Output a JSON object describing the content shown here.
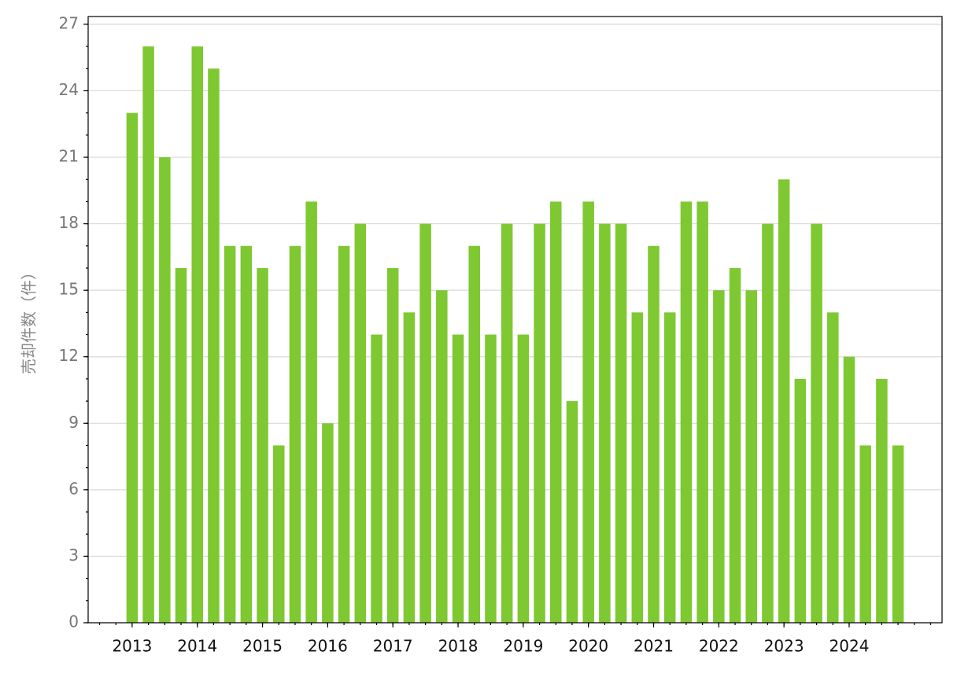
{
  "chart_data": {
    "type": "bar",
    "y_label": "売却件数（件）",
    "categories": [
      "2013",
      null,
      null,
      null,
      "2014",
      null,
      null,
      null,
      "2015",
      null,
      null,
      null,
      "2016",
      null,
      null,
      null,
      "2017",
      null,
      null,
      null,
      "2018",
      null,
      null,
      null,
      "2019",
      null,
      null,
      null,
      "2020",
      null,
      null,
      null,
      "2021",
      null,
      null,
      null,
      "2022",
      null,
      null,
      null,
      "2023",
      null,
      null,
      null,
      "2024",
      null,
      null,
      null
    ],
    "values": [
      23,
      26,
      21,
      16,
      26,
      25,
      17,
      17,
      16,
      8,
      17,
      19,
      9,
      17,
      18,
      13,
      16,
      14,
      18,
      15,
      13,
      17,
      13,
      18,
      13,
      18,
      19,
      10,
      19,
      18,
      18,
      14,
      17,
      14,
      19,
      19,
      15,
      16,
      15,
      18,
      20,
      11,
      18,
      14,
      12,
      8,
      11,
      8
    ],
    "color": "#7ec832",
    "ylim": [
      0,
      27.35
    ],
    "yticks": [
      0,
      3,
      6,
      9,
      12,
      15,
      18,
      21,
      24,
      27
    ],
    "grid": true
  }
}
